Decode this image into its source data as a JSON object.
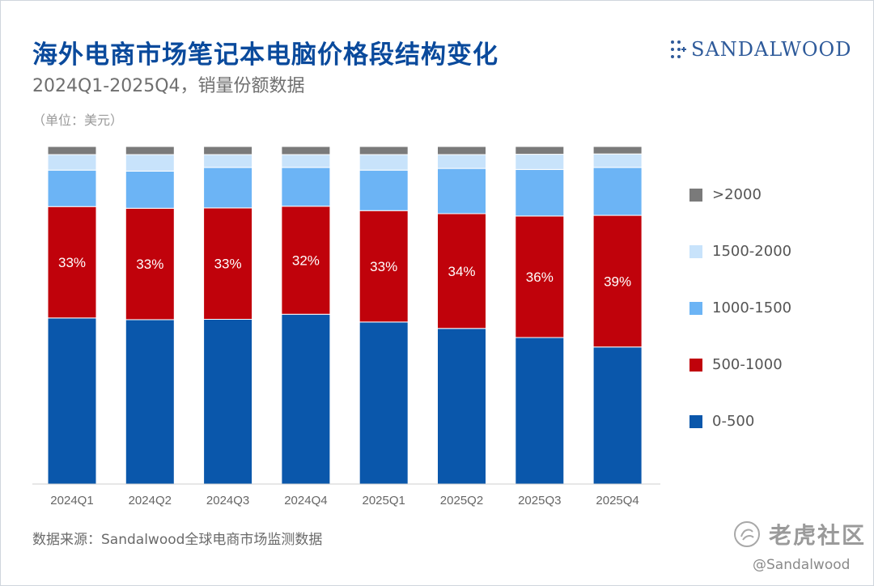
{
  "header": {
    "title": "海外电商市场笔记本电脑价格段结构变化",
    "subtitle": "2024Q1-2025Q4，销量份额数据",
    "unit": "（单位：美元）"
  },
  "brand": {
    "name": "SANDALWOOD",
    "icon": "sandalwood-logo-icon"
  },
  "footer": {
    "source": "数据来源：Sandalwood全球电商市场监测数据",
    "watermark": "老虎社区",
    "watermark_icon": "tiger-community-logo-icon",
    "handle": "@Sandalwood"
  },
  "chart_data": {
    "type": "bar",
    "stacked": true,
    "categories": [
      "2024Q1",
      "2024Q2",
      "2024Q3",
      "2024Q4",
      "2025Q1",
      "2025Q2",
      "2025Q3",
      "2025Q4"
    ],
    "ylim": [
      0,
      100
    ],
    "series": [
      {
        "name": "0-500",
        "color": "#0a57ab",
        "values": [
          49.2,
          48.7,
          48.8,
          50.3,
          48.0,
          46.1,
          43.4,
          40.6
        ]
      },
      {
        "name": "500-1000",
        "color": "#c0020b",
        "values": [
          33.0,
          33.0,
          33.0,
          32.0,
          33.0,
          34.0,
          36.0,
          39.0
        ],
        "labels": [
          "33%",
          "33%",
          "33%",
          "32%",
          "33%",
          "34%",
          "36%",
          "39%"
        ]
      },
      {
        "name": "1000-1500",
        "color": "#6cb4f5",
        "values": [
          10.8,
          11.0,
          12.0,
          11.5,
          12.0,
          13.4,
          13.8,
          14.2
        ]
      },
      {
        "name": "1500-2000",
        "color": "#c8e3fb",
        "values": [
          4.6,
          4.9,
          3.8,
          3.8,
          4.6,
          4.1,
          4.5,
          4.0
        ]
      },
      {
        "name": ">2000",
        "color": "#7a7a7a",
        "values": [
          2.4,
          2.4,
          2.4,
          2.4,
          2.4,
          2.4,
          2.3,
          2.2
        ]
      }
    ],
    "legend": {
      "position": "right",
      "order": [
        ">2000",
        "1500-2000",
        "1000-1500",
        "500-1000",
        "0-500"
      ]
    },
    "grid": false,
    "title": "",
    "xlabel": "",
    "ylabel": ""
  }
}
